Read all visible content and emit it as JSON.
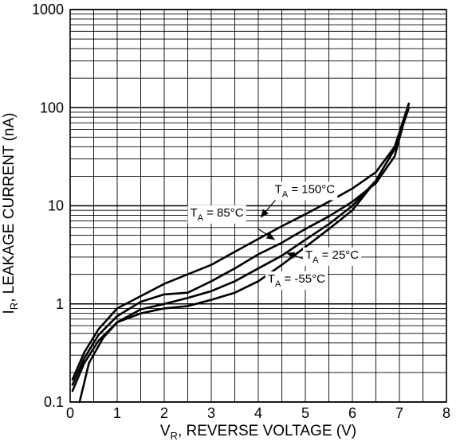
{
  "chart_data": {
    "type": "line",
    "xlabel": {
      "prefix": "V",
      "sub": "R",
      "text": ", REVERSE VOLTAGE (V)"
    },
    "ylabel": {
      "prefix": "I",
      "sub": "R",
      "text": ", LEAKAGE CURRENT (nA)"
    },
    "xlim": [
      0,
      8
    ],
    "ylim": [
      0.1,
      1000
    ],
    "yscale": "log",
    "grid": true,
    "x_ticks": [
      "0",
      "1",
      "2",
      "3",
      "4",
      "5",
      "6",
      "7",
      "8"
    ],
    "y_ticks": [
      "0.1",
      "1",
      "10",
      "100",
      "1000"
    ],
    "series": [
      {
        "name": "T_A = 150°C",
        "label": {
          "prefix": "T",
          "sub": "A",
          "text": " = 150°C"
        },
        "x": [
          0.05,
          0.3,
          0.6,
          1.0,
          1.5,
          2.0,
          2.5,
          3.0,
          3.5,
          4.0,
          4.5,
          5.0,
          5.5,
          6.0,
          6.5,
          6.9,
          7.2
        ],
        "y": [
          0.17,
          0.32,
          0.55,
          0.9,
          1.2,
          1.6,
          2.0,
          2.5,
          3.4,
          4.6,
          6.2,
          8.2,
          11.0,
          15.0,
          22.0,
          40.0,
          110.0
        ]
      },
      {
        "name": "T_A = 85°C",
        "label": {
          "prefix": "T",
          "sub": "A",
          "text": " = 85°C"
        },
        "x": [
          0.05,
          0.3,
          0.6,
          1.0,
          1.5,
          2.0,
          2.5,
          3.0,
          3.5,
          4.0,
          4.5,
          5.0,
          5.5,
          6.0,
          6.5,
          6.9,
          7.2
        ],
        "y": [
          0.15,
          0.28,
          0.48,
          0.75,
          1.05,
          1.25,
          1.3,
          1.7,
          2.3,
          3.2,
          4.2,
          5.8,
          7.8,
          11.0,
          17.0,
          32.0,
          110.0
        ]
      },
      {
        "name": "T_A = 25°C",
        "label": {
          "prefix": "T",
          "sub": "A",
          "text": " = 25°C"
        },
        "x": [
          0.05,
          0.3,
          0.6,
          1.0,
          1.5,
          2.0,
          2.5,
          3.0,
          3.5,
          4.0,
          4.5,
          5.0,
          5.5,
          6.0,
          6.5,
          6.9,
          7.2
        ],
        "y": [
          0.13,
          0.25,
          0.42,
          0.65,
          0.88,
          1.0,
          1.15,
          1.35,
          1.7,
          2.3,
          3.1,
          4.5,
          6.5,
          10.0,
          18.0,
          38.0,
          100.0
        ]
      },
      {
        "name": "T_A = -55°C",
        "label": {
          "prefix": "T",
          "sub": "A",
          "text": " = -55°C"
        },
        "x": [
          0.2,
          0.4,
          0.7,
          1.0,
          1.5,
          2.0,
          2.5,
          3.0,
          3.5,
          4.0,
          4.5,
          5.0,
          5.5,
          6.0,
          6.5,
          6.9,
          7.2
        ],
        "y": [
          0.1,
          0.25,
          0.45,
          0.65,
          0.8,
          0.9,
          0.95,
          1.1,
          1.3,
          1.7,
          2.5,
          3.8,
          5.8,
          9.0,
          18.0,
          38.0,
          100.0
        ]
      }
    ],
    "annotations": [
      {
        "series": "T_A = 150°C",
        "x": 4.35,
        "y": 13.5,
        "anchor": "start",
        "leader": [
          [
            4.4,
            12.0
          ],
          [
            4.05,
            7.6
          ]
        ]
      },
      {
        "series": "T_A = 85°C",
        "x": 2.55,
        "y": 7.8,
        "anchor": "start",
        "leader": [
          [
            4.0,
            5.8
          ],
          [
            4.35,
            4.5
          ]
        ]
      },
      {
        "series": "T_A = 25°C",
        "x": 5.0,
        "y": 2.9,
        "anchor": "start",
        "leader": [
          [
            4.95,
            2.9
          ],
          [
            4.6,
            3.3
          ]
        ]
      },
      {
        "series": "T_A = -55°C",
        "x": 4.2,
        "y": 1.65,
        "anchor": "start",
        "leader": []
      }
    ]
  }
}
